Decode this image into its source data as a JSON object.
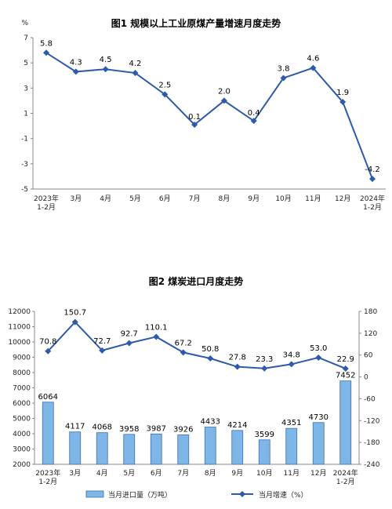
{
  "chart_data": [
    {
      "type": "line",
      "title": "图1  规模以上工业原煤产量增速月度走势",
      "ylabel": "%",
      "ylim": [
        -5,
        7
      ],
      "yticks": [
        "7",
        "5",
        "3",
        "1",
        "-1",
        "-3",
        "-5"
      ],
      "categories": [
        [
          "2023年",
          "1-2月"
        ],
        [
          "3月"
        ],
        [
          "4月"
        ],
        [
          "5月"
        ],
        [
          "6月"
        ],
        [
          "7月"
        ],
        [
          "8月"
        ],
        [
          "9月"
        ],
        [
          "10月"
        ],
        [
          "11月"
        ],
        [
          "12月"
        ],
        [
          "2024年",
          "1-2月"
        ]
      ],
      "values": [
        5.8,
        4.3,
        4.5,
        4.2,
        2.5,
        0.1,
        2.0,
        0.4,
        3.8,
        4.6,
        1.9,
        -4.2
      ],
      "value_labels": [
        "5.8",
        "4.3",
        "4.5",
        "4.2",
        "2.5",
        "0.1",
        "2.0",
        "0.4",
        "3.8",
        "4.6",
        "1.9",
        "-4.2"
      ],
      "color": "#2E5AAC"
    },
    {
      "type": "bar+line",
      "title": "图2  煤炭进口月度走势",
      "left_ylim": [
        2000,
        12000
      ],
      "left_yticks": [
        "12000",
        "11000",
        "10000",
        "9000",
        "8000",
        "7000",
        "6000",
        "5000",
        "4000",
        "3000",
        "2000"
      ],
      "right_ylim": [
        -240,
        180
      ],
      "right_yticks": [
        "180",
        "120",
        "60",
        "0",
        "-60",
        "-120",
        "-180",
        "-240"
      ],
      "categories": [
        [
          "2023年",
          "1-2月"
        ],
        [
          "3月"
        ],
        [
          "4月"
        ],
        [
          "5月"
        ],
        [
          "6月"
        ],
        [
          "7月"
        ],
        [
          "8月"
        ],
        [
          "9月"
        ],
        [
          "10月"
        ],
        [
          "11月"
        ],
        [
          "12月"
        ],
        [
          "2024年",
          "1-2月"
        ]
      ],
      "series": [
        {
          "name": "当月进口量（万吨）",
          "kind": "bar",
          "axis": "left",
          "values": [
            6064,
            4117,
            4068,
            3958,
            3987,
            3926,
            4433,
            4214,
            3599,
            4351,
            4730,
            7452
          ],
          "value_labels": [
            "6064",
            "4117",
            "4068",
            "3958",
            "3987",
            "3926",
            "4433",
            "4214",
            "3599",
            "4351",
            "4730",
            "7452"
          ],
          "color": "#7EB6E8"
        },
        {
          "name": "当月增速（%）",
          "kind": "line",
          "axis": "right",
          "values": [
            70.8,
            150.7,
            72.7,
            92.7,
            110.1,
            67.2,
            50.8,
            27.8,
            23.3,
            34.8,
            53.0,
            22.9
          ],
          "value_labels": [
            "70.8",
            "150.7",
            "72.7",
            "92.7",
            "110.1",
            "67.2",
            "50.8",
            "27.8",
            "23.3",
            "34.8",
            "53.0",
            "22.9"
          ],
          "color": "#2E5AAC"
        }
      ]
    }
  ]
}
